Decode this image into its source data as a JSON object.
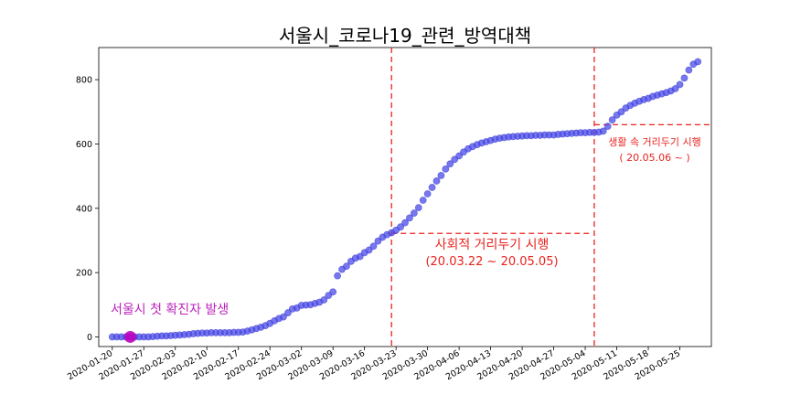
{
  "chart_data": {
    "type": "scatter",
    "title": "서울시_코로나19_관련_방역대책",
    "xlabel": "",
    "ylabel": "",
    "x_start": "2020-01-17",
    "x_end": "2020-06-01",
    "ylim": [
      -30,
      900
    ],
    "yticks": [
      0,
      200,
      400,
      600,
      800
    ],
    "xticks": [
      "2020-01-20",
      "2020-01-27",
      "2020-02-03",
      "2020-02-10",
      "2020-02-17",
      "2020-02-24",
      "2020-03-02",
      "2020-03-09",
      "2020-03-16",
      "2020-03-23",
      "2020-03-30",
      "2020-04-06",
      "2020-04-13",
      "2020-04-20",
      "2020-04-27",
      "2020-05-04",
      "2020-05-11",
      "2020-05-18",
      "2020-05-25"
    ],
    "grid": false,
    "point_color": "#4a4ae8",
    "highlight": {
      "date": "2020-01-24",
      "value": 0,
      "color": "#bb00bb"
    },
    "series": [
      {
        "points": [
          [
            "2020-01-20",
            0
          ],
          [
            "2020-01-21",
            0
          ],
          [
            "2020-01-22",
            0
          ],
          [
            "2020-01-23",
            0
          ],
          [
            "2020-01-24",
            0
          ],
          [
            "2020-01-25",
            0
          ],
          [
            "2020-01-26",
            0
          ],
          [
            "2020-01-27",
            0
          ],
          [
            "2020-01-28",
            0
          ],
          [
            "2020-01-29",
            1
          ],
          [
            "2020-01-30",
            2
          ],
          [
            "2020-01-31",
            3
          ],
          [
            "2020-02-01",
            3
          ],
          [
            "2020-02-02",
            4
          ],
          [
            "2020-02-03",
            5
          ],
          [
            "2020-02-04",
            6
          ],
          [
            "2020-02-05",
            7
          ],
          [
            "2020-02-06",
            8
          ],
          [
            "2020-02-07",
            10
          ],
          [
            "2020-02-08",
            11
          ],
          [
            "2020-02-09",
            12
          ],
          [
            "2020-02-10",
            12
          ],
          [
            "2020-02-11",
            13
          ],
          [
            "2020-02-12",
            13
          ],
          [
            "2020-02-13",
            13
          ],
          [
            "2020-02-14",
            13
          ],
          [
            "2020-02-15",
            13
          ],
          [
            "2020-02-16",
            14
          ],
          [
            "2020-02-17",
            14
          ],
          [
            "2020-02-18",
            15
          ],
          [
            "2020-02-19",
            18
          ],
          [
            "2020-02-20",
            22
          ],
          [
            "2020-02-21",
            26
          ],
          [
            "2020-02-22",
            30
          ],
          [
            "2020-02-23",
            35
          ],
          [
            "2020-02-24",
            42
          ],
          [
            "2020-02-25",
            50
          ],
          [
            "2020-02-26",
            57
          ],
          [
            "2020-02-27",
            62
          ],
          [
            "2020-02-28",
            75
          ],
          [
            "2020-02-29",
            87
          ],
          [
            "2020-03-01",
            90
          ],
          [
            "2020-03-02",
            98
          ],
          [
            "2020-03-03",
            99
          ],
          [
            "2020-03-04",
            100
          ],
          [
            "2020-03-05",
            104
          ],
          [
            "2020-03-06",
            108
          ],
          [
            "2020-03-07",
            115
          ],
          [
            "2020-03-08",
            129
          ],
          [
            "2020-03-09",
            140
          ],
          [
            "2020-03-10",
            190
          ],
          [
            "2020-03-11",
            210
          ],
          [
            "2020-03-12",
            220
          ],
          [
            "2020-03-13",
            235
          ],
          [
            "2020-03-14",
            245
          ],
          [
            "2020-03-15",
            250
          ],
          [
            "2020-03-16",
            262
          ],
          [
            "2020-03-17",
            270
          ],
          [
            "2020-03-18",
            282
          ],
          [
            "2020-03-19",
            298
          ],
          [
            "2020-03-20",
            310
          ],
          [
            "2020-03-21",
            318
          ],
          [
            "2020-03-22",
            324
          ],
          [
            "2020-03-23",
            332
          ],
          [
            "2020-03-24",
            342
          ],
          [
            "2020-03-25",
            355
          ],
          [
            "2020-03-26",
            370
          ],
          [
            "2020-03-27",
            385
          ],
          [
            "2020-03-28",
            402
          ],
          [
            "2020-03-29",
            425
          ],
          [
            "2020-03-30",
            445
          ],
          [
            "2020-03-31",
            465
          ],
          [
            "2020-04-01",
            485
          ],
          [
            "2020-04-02",
            502
          ],
          [
            "2020-04-03",
            522
          ],
          [
            "2020-04-04",
            538
          ],
          [
            "2020-04-05",
            552
          ],
          [
            "2020-04-06",
            563
          ],
          [
            "2020-04-07",
            575
          ],
          [
            "2020-04-08",
            585
          ],
          [
            "2020-04-09",
            592
          ],
          [
            "2020-04-10",
            598
          ],
          [
            "2020-04-11",
            603
          ],
          [
            "2020-04-12",
            607
          ],
          [
            "2020-04-13",
            611
          ],
          [
            "2020-04-14",
            615
          ],
          [
            "2020-04-15",
            618
          ],
          [
            "2020-04-16",
            620
          ],
          [
            "2020-04-17",
            622
          ],
          [
            "2020-04-18",
            623
          ],
          [
            "2020-04-19",
            624
          ],
          [
            "2020-04-20",
            625
          ],
          [
            "2020-04-21",
            626
          ],
          [
            "2020-04-22",
            626
          ],
          [
            "2020-04-23",
            627
          ],
          [
            "2020-04-24",
            627
          ],
          [
            "2020-04-25",
            628
          ],
          [
            "2020-04-26",
            628
          ],
          [
            "2020-04-27",
            628
          ],
          [
            "2020-04-28",
            630
          ],
          [
            "2020-04-29",
            631
          ],
          [
            "2020-04-30",
            632
          ],
          [
            "2020-05-01",
            633
          ],
          [
            "2020-05-02",
            634
          ],
          [
            "2020-05-03",
            635
          ],
          [
            "2020-05-04",
            635
          ],
          [
            "2020-05-05",
            636
          ],
          [
            "2020-05-06",
            636
          ],
          [
            "2020-05-07",
            637
          ],
          [
            "2020-05-08",
            640
          ],
          [
            "2020-05-09",
            655
          ],
          [
            "2020-05-10",
            675
          ],
          [
            "2020-05-11",
            690
          ],
          [
            "2020-05-12",
            700
          ],
          [
            "2020-05-13",
            712
          ],
          [
            "2020-05-14",
            720
          ],
          [
            "2020-05-15",
            727
          ],
          [
            "2020-05-16",
            733
          ],
          [
            "2020-05-17",
            738
          ],
          [
            "2020-05-18",
            742
          ],
          [
            "2020-05-19",
            748
          ],
          [
            "2020-05-20",
            752
          ],
          [
            "2020-05-21",
            756
          ],
          [
            "2020-05-22",
            760
          ],
          [
            "2020-05-23",
            765
          ],
          [
            "2020-05-24",
            772
          ],
          [
            "2020-05-25",
            785
          ],
          [
            "2020-05-26",
            805
          ],
          [
            "2020-05-27",
            830
          ],
          [
            "2020-05-28",
            848
          ],
          [
            "2020-05-29",
            856
          ]
        ]
      }
    ],
    "annotations": {
      "first_case": {
        "text": "서울시 첫 확진자 발생",
        "color": "#bb22bb"
      },
      "distancing": {
        "line1": "사회적 거리두기 시행",
        "line2": "(20.03.22 ~ 20.05.05)",
        "start": "2020-03-22",
        "end": "2020-05-05",
        "level": 322,
        "color": "#e8231f"
      },
      "life_distancing": {
        "line1": "생활 속 거리두기 시행",
        "line2": "( 20.05.06 ~ )",
        "start": "2020-05-06",
        "level": 660,
        "color": "#e8231f"
      }
    }
  }
}
